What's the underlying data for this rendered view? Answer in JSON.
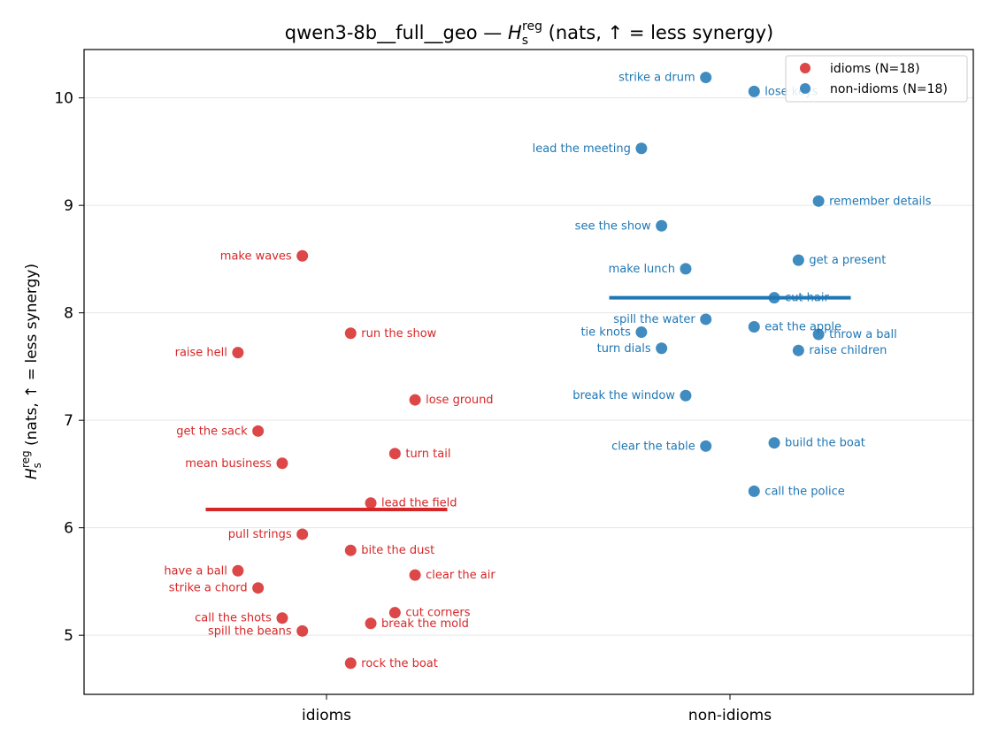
{
  "chart_data": {
    "type": "scatter",
    "title_prefix": "qwen3-8b__full__geo — ",
    "title_suffix": " (nats, ↑ = less synergy)",
    "symbol_main": "H",
    "symbol_sub": "s",
    "symbol_sup": "reg",
    "ylabel_suffix": " (nats, ↑ = less synergy)",
    "categories": [
      "idioms",
      "non-idioms"
    ],
    "ylim": [
      4.45,
      10.45
    ],
    "yticks": [
      "5",
      "6",
      "7",
      "8",
      "9",
      "10"
    ],
    "grid": "horizontal",
    "legend_position": "top-right",
    "colors": {
      "idioms": "#d62728",
      "non-idioms": "#1f77b4"
    },
    "series": [
      {
        "name": "idioms (N=18)",
        "category": "idioms",
        "mean": 6.17,
        "points": [
          {
            "label": "make waves",
            "y": 8.53,
            "offset": -0.06,
            "side": "left"
          },
          {
            "label": "run the show",
            "y": 7.81,
            "offset": 0.06,
            "side": "right"
          },
          {
            "label": "raise hell",
            "y": 7.63,
            "offset": -0.22,
            "side": "left"
          },
          {
            "label": "lose ground",
            "y": 7.19,
            "offset": 0.22,
            "side": "right"
          },
          {
            "label": "get the sack",
            "y": 6.9,
            "offset": -0.17,
            "side": "left"
          },
          {
            "label": "turn tail",
            "y": 6.69,
            "offset": 0.17,
            "side": "right"
          },
          {
            "label": "mean business",
            "y": 6.6,
            "offset": -0.11,
            "side": "left"
          },
          {
            "label": "lead the field",
            "y": 6.23,
            "offset": 0.11,
            "side": "right"
          },
          {
            "label": "pull strings",
            "y": 5.94,
            "offset": -0.06,
            "side": "left"
          },
          {
            "label": "bite the dust",
            "y": 5.79,
            "offset": 0.06,
            "side": "right"
          },
          {
            "label": "have a ball",
            "y": 5.6,
            "offset": -0.22,
            "side": "left"
          },
          {
            "label": "clear the air",
            "y": 5.56,
            "offset": 0.22,
            "side": "right"
          },
          {
            "label": "strike a chord",
            "y": 5.44,
            "offset": -0.17,
            "side": "left"
          },
          {
            "label": "cut corners",
            "y": 5.21,
            "offset": 0.17,
            "side": "right"
          },
          {
            "label": "call the shots",
            "y": 5.16,
            "offset": -0.11,
            "side": "left"
          },
          {
            "label": "break the mold",
            "y": 5.11,
            "offset": 0.11,
            "side": "right"
          },
          {
            "label": "spill the beans",
            "y": 5.04,
            "offset": -0.06,
            "side": "left"
          },
          {
            "label": "rock the boat",
            "y": 4.74,
            "offset": 0.06,
            "side": "right"
          }
        ]
      },
      {
        "name": "non-idioms (N=18)",
        "category": "non-idioms",
        "mean": 8.14,
        "points": [
          {
            "label": "strike a drum",
            "y": 10.19,
            "offset": -0.06,
            "side": "left"
          },
          {
            "label": "lose keys",
            "y": 10.06,
            "offset": 0.06,
            "side": "right"
          },
          {
            "label": "lead the meeting",
            "y": 9.53,
            "offset": -0.22,
            "side": "left"
          },
          {
            "label": "remember details",
            "y": 9.04,
            "offset": 0.22,
            "side": "right"
          },
          {
            "label": "see the show",
            "y": 8.81,
            "offset": -0.17,
            "side": "left"
          },
          {
            "label": "get a present",
            "y": 8.49,
            "offset": 0.17,
            "side": "right"
          },
          {
            "label": "make lunch",
            "y": 8.41,
            "offset": -0.11,
            "side": "left"
          },
          {
            "label": "cut hair",
            "y": 8.14,
            "offset": 0.11,
            "side": "right"
          },
          {
            "label": "spill the water",
            "y": 7.94,
            "offset": -0.06,
            "side": "left"
          },
          {
            "label": "eat the apple",
            "y": 7.87,
            "offset": 0.06,
            "side": "right"
          },
          {
            "label": "tie knots",
            "y": 7.82,
            "offset": -0.22,
            "side": "left"
          },
          {
            "label": "throw a ball",
            "y": 7.8,
            "offset": 0.22,
            "side": "right"
          },
          {
            "label": "turn dials",
            "y": 7.67,
            "offset": -0.17,
            "side": "left"
          },
          {
            "label": "raise children",
            "y": 7.65,
            "offset": 0.17,
            "side": "right"
          },
          {
            "label": "break the window",
            "y": 7.23,
            "offset": -0.11,
            "side": "left"
          },
          {
            "label": "build the boat",
            "y": 6.79,
            "offset": 0.11,
            "side": "right"
          },
          {
            "label": "clear the table",
            "y": 6.76,
            "offset": -0.06,
            "side": "left"
          },
          {
            "label": "call the police",
            "y": 6.34,
            "offset": 0.06,
            "side": "right"
          }
        ]
      }
    ]
  }
}
